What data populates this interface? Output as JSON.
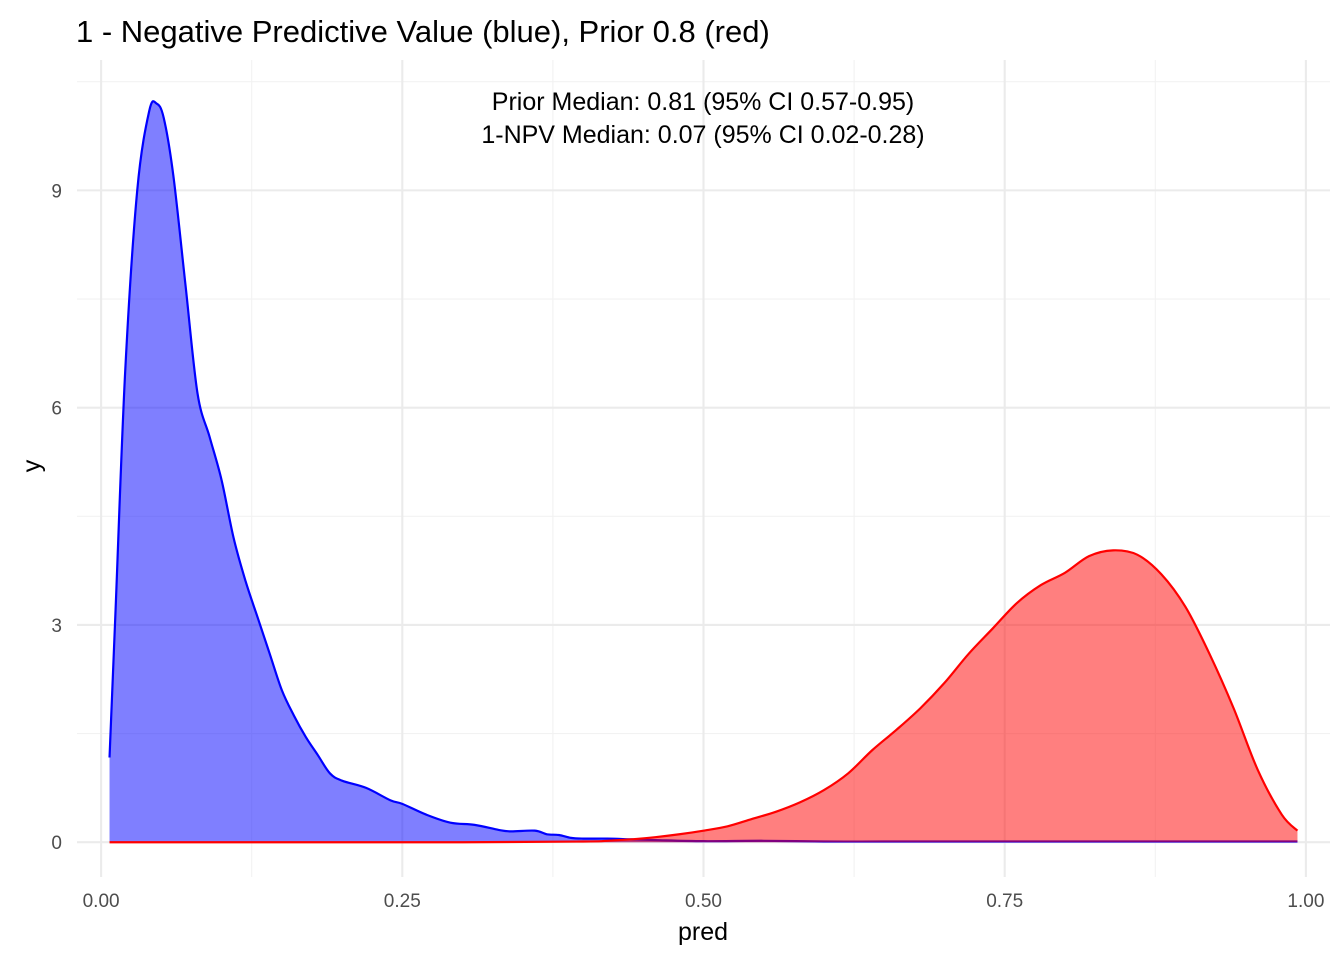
{
  "chart_data": {
    "type": "area",
    "title": "1 - Negative Predictive Value (blue), Prior 0.8 (red)",
    "xlabel": "pred",
    "ylabel": "y",
    "xlim": [
      -0.02,
      1.02
    ],
    "ylim": [
      -0.48,
      10.8
    ],
    "x_ticks": [
      0,
      0.25,
      0.5,
      0.75,
      1.0
    ],
    "x_tick_labels": [
      "0.00",
      "0.25",
      "0.50",
      "0.75",
      "1.00"
    ],
    "y_ticks": [
      0,
      3,
      6,
      9
    ],
    "y_tick_labels": [
      "0",
      "3",
      "6",
      "9"
    ],
    "x_minor": [
      0.125,
      0.375,
      0.625,
      0.875
    ],
    "y_minor": [
      1.5,
      4.5,
      7.5,
      10.5
    ],
    "grid": true,
    "annotations": [
      "Prior Median: 0.81 (95% CI 0.57-0.95)",
      "1-NPV Median: 0.07 (95% CI 0.02-0.28)"
    ],
    "annotation_anchor": {
      "x": 0.5,
      "y": 10.45
    },
    "series": [
      {
        "color": "#0000ff",
        "fill": "#0000ff",
        "fill_opacity": 0.5,
        "x": [
          0.007,
          0.012,
          0.02,
          0.03,
          0.04,
          0.046,
          0.052,
          0.06,
          0.07,
          0.08,
          0.09,
          0.1,
          0.11,
          0.12,
          0.13,
          0.14,
          0.15,
          0.16,
          0.17,
          0.18,
          0.19,
          0.2,
          0.22,
          0.24,
          0.25,
          0.27,
          0.29,
          0.31,
          0.33,
          0.34,
          0.36,
          0.37,
          0.38,
          0.39,
          0.4,
          0.42,
          0.44,
          0.46,
          0.5,
          0.55,
          0.6,
          0.65,
          0.7,
          0.75,
          0.8,
          0.85,
          0.9,
          0.95,
          0.993
        ],
        "y": [
          1.17,
          3.2,
          6.5,
          9.0,
          10.1,
          10.2,
          10.0,
          9.2,
          7.7,
          6.2,
          5.6,
          5.0,
          4.2,
          3.6,
          3.1,
          2.6,
          2.1,
          1.75,
          1.45,
          1.2,
          0.95,
          0.85,
          0.75,
          0.58,
          0.53,
          0.38,
          0.27,
          0.24,
          0.17,
          0.15,
          0.16,
          0.11,
          0.1,
          0.06,
          0.05,
          0.05,
          0.04,
          0.03,
          0.015,
          0.02,
          0.01,
          0.01,
          0.01,
          0.01,
          0.01,
          0.01,
          0.01,
          0.01,
          0.01
        ]
      },
      {
        "color": "#ff0000",
        "fill": "#ff0000",
        "fill_opacity": 0.5,
        "x": [
          0.007,
          0.3,
          0.4,
          0.42,
          0.44,
          0.46,
          0.48,
          0.5,
          0.52,
          0.54,
          0.56,
          0.58,
          0.6,
          0.62,
          0.64,
          0.66,
          0.68,
          0.7,
          0.72,
          0.74,
          0.76,
          0.78,
          0.8,
          0.82,
          0.84,
          0.86,
          0.88,
          0.9,
          0.92,
          0.94,
          0.96,
          0.98,
          0.993
        ],
        "y": [
          0.0,
          0.0,
          0.01,
          0.02,
          0.04,
          0.07,
          0.11,
          0.16,
          0.22,
          0.32,
          0.42,
          0.55,
          0.72,
          0.95,
          1.27,
          1.55,
          1.85,
          2.2,
          2.6,
          2.95,
          3.3,
          3.55,
          3.72,
          3.95,
          4.03,
          3.97,
          3.7,
          3.25,
          2.6,
          1.85,
          1.0,
          0.38,
          0.16
        ]
      }
    ]
  }
}
